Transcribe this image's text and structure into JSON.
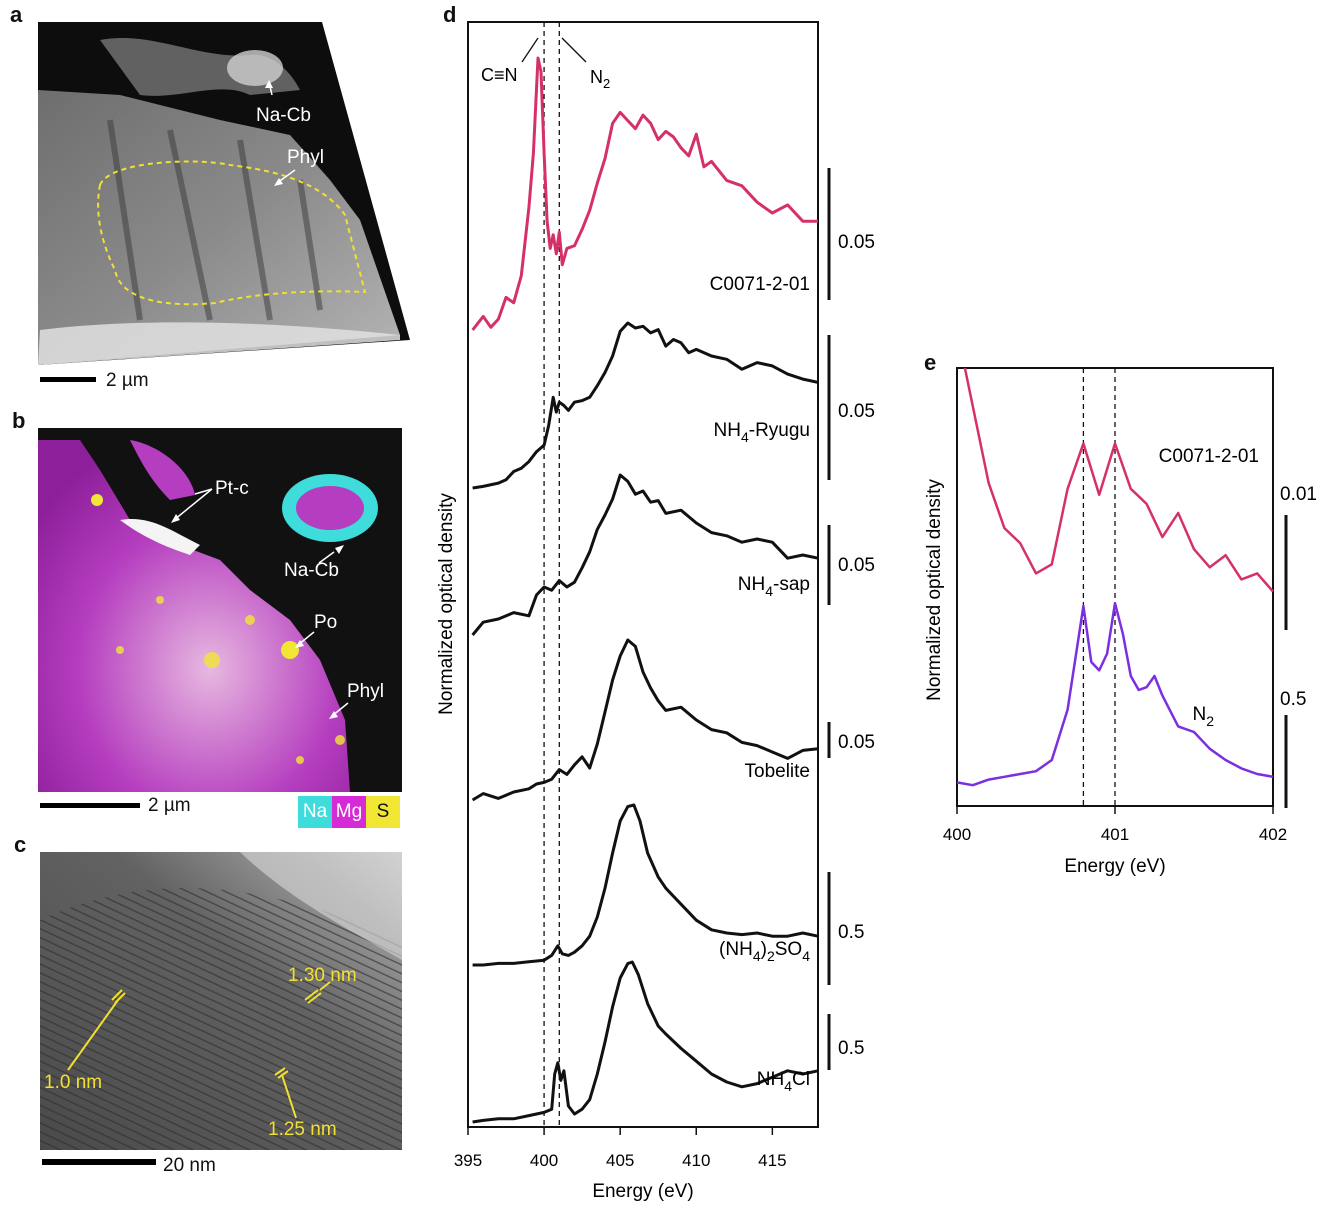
{
  "panels": {
    "a": {
      "label": "a",
      "ann": {
        "nacb": "Na-Cb",
        "phyl": "Phyl"
      },
      "scale": "2 µm"
    },
    "b": {
      "label": "b",
      "ann": {
        "ptc": "Pt-c",
        "nacb": "Na-Cb",
        "po": "Po",
        "phyl": "Phyl"
      },
      "scale": "2 µm",
      "legend": [
        {
          "label": "Na",
          "color": "#3fdcdc"
        },
        {
          "label": "Mg",
          "color": "#d62ad6"
        },
        {
          "label": "S",
          "color": "#f2e634"
        }
      ]
    },
    "c": {
      "label": "c",
      "ann": {
        "d130": "1.30 nm",
        "d10": "1.0 nm",
        "d125": "1.25 nm"
      },
      "scale": "20 nm"
    },
    "d": {
      "label": "d",
      "annot": {
        "cn": "C≡N",
        "n2": "N",
        "n2sub": "2"
      }
    },
    "e": {
      "label": "e"
    }
  },
  "colors": {
    "pink": "#d6306b",
    "purple": "#7b2fe0",
    "yellow": "#f0e030",
    "black": "#111111"
  },
  "chart_data": [
    {
      "type": "line",
      "panel": "d",
      "xlabel": "Energy (eV)",
      "ylabel": "Normalized optical density",
      "xlim": [
        395,
        418
      ],
      "xticks": [
        "395",
        "400",
        "405",
        "410",
        "415"
      ],
      "dashed_lines": [
        400.0,
        401.0
      ],
      "series": [
        {
          "name": "C0071-2-01",
          "label_main": "C0071-2-01",
          "label_sub": "",
          "label_tail": "",
          "color": "#d6306b",
          "scale": "0.05",
          "x": [
            395.3,
            396.0,
            396.5,
            397.0,
            397.5,
            398.0,
            398.5,
            399.0,
            399.3,
            399.6,
            399.8,
            400.0,
            400.2,
            400.4,
            400.6,
            400.8,
            401.0,
            401.2,
            401.5,
            402.0,
            402.5,
            403.0,
            403.5,
            404.0,
            404.5,
            405.0,
            405.5,
            406.0,
            406.5,
            407.0,
            407.5,
            408.0,
            408.5,
            409.0,
            409.5,
            410.0,
            410.5,
            411.0,
            412.0,
            413.0,
            414.0,
            415.0,
            416.0,
            417.0,
            418.0
          ],
          "y": [
            0.0,
            0.05,
            0.01,
            0.04,
            0.12,
            0.1,
            0.2,
            0.45,
            0.65,
            1.0,
            0.95,
            0.65,
            0.4,
            0.3,
            0.35,
            0.28,
            0.36,
            0.24,
            0.3,
            0.31,
            0.37,
            0.44,
            0.54,
            0.63,
            0.76,
            0.8,
            0.77,
            0.74,
            0.79,
            0.76,
            0.7,
            0.73,
            0.71,
            0.67,
            0.64,
            0.72,
            0.6,
            0.62,
            0.55,
            0.53,
            0.47,
            0.43,
            0.46,
            0.4,
            0.4
          ]
        },
        {
          "name": "NH4-Ryugu",
          "label_main": "NH",
          "label_sub": "4",
          "label_tail": "-Ryugu",
          "color": "#111111",
          "scale": "0.05",
          "x": [
            395.3,
            396.0,
            397.0,
            397.5,
            398.0,
            398.5,
            399.0,
            399.5,
            400.0,
            400.3,
            400.6,
            400.8,
            401.0,
            401.3,
            401.6,
            402.0,
            402.5,
            403.0,
            403.5,
            404.0,
            404.5,
            405.0,
            405.5,
            406.0,
            406.5,
            407.0,
            407.5,
            408.0,
            408.5,
            409.0,
            409.5,
            410.0,
            411.0,
            412.0,
            413.0,
            414.0,
            415.0,
            416.0,
            417.0,
            418.0
          ],
          "y": [
            0.0,
            0.01,
            0.03,
            0.05,
            0.1,
            0.12,
            0.16,
            0.22,
            0.26,
            0.38,
            0.55,
            0.46,
            0.52,
            0.5,
            0.47,
            0.52,
            0.53,
            0.55,
            0.62,
            0.7,
            0.8,
            0.95,
            1.0,
            0.97,
            0.98,
            0.94,
            0.96,
            0.86,
            0.9,
            0.88,
            0.82,
            0.84,
            0.8,
            0.78,
            0.72,
            0.76,
            0.74,
            0.69,
            0.66,
            0.64
          ]
        },
        {
          "name": "NH4-sap",
          "label_main": "NH",
          "label_sub": "4",
          "label_tail": "-sap",
          "color": "#111111",
          "scale": "0.05",
          "x": [
            395.3,
            396.0,
            397.0,
            398.0,
            399.0,
            399.5,
            400.0,
            400.5,
            401.0,
            401.5,
            402.0,
            402.5,
            403.0,
            403.5,
            404.0,
            404.5,
            405.0,
            405.5,
            406.0,
            406.5,
            407.0,
            407.5,
            408.0,
            409.0,
            410.0,
            411.0,
            412.0,
            413.0,
            414.0,
            415.0,
            416.0,
            417.0,
            418.0
          ],
          "y": [
            0.0,
            0.08,
            0.1,
            0.14,
            0.12,
            0.25,
            0.3,
            0.28,
            0.34,
            0.3,
            0.33,
            0.42,
            0.52,
            0.66,
            0.75,
            0.85,
            1.0,
            0.96,
            0.88,
            0.9,
            0.83,
            0.84,
            0.76,
            0.78,
            0.7,
            0.64,
            0.62,
            0.58,
            0.6,
            0.58,
            0.48,
            0.5,
            0.48
          ]
        },
        {
          "name": "Tobelite",
          "label_main": "Tobelite",
          "label_sub": "",
          "label_tail": "",
          "color": "#111111",
          "scale": "0.05",
          "x": [
            395.3,
            396.0,
            397.0,
            398.0,
            399.0,
            399.5,
            400.0,
            400.5,
            401.0,
            401.5,
            402.0,
            402.5,
            403.0,
            403.5,
            404.0,
            404.5,
            405.0,
            405.5,
            406.0,
            406.5,
            407.0,
            407.5,
            408.0,
            409.0,
            410.0,
            411.0,
            412.0,
            413.0,
            414.0,
            415.0,
            416.0,
            417.0,
            418.0
          ],
          "y": [
            0.0,
            0.04,
            0.01,
            0.05,
            0.07,
            0.1,
            0.11,
            0.13,
            0.19,
            0.16,
            0.22,
            0.27,
            0.2,
            0.35,
            0.55,
            0.75,
            0.9,
            1.0,
            0.96,
            0.8,
            0.7,
            0.62,
            0.56,
            0.58,
            0.5,
            0.44,
            0.42,
            0.36,
            0.34,
            0.3,
            0.26,
            0.31,
            0.32
          ]
        },
        {
          "name": "(NH4)2SO4",
          "label_main": "(NH",
          "label_sub": "4",
          "label_tail": ")",
          "label_sub2": "2",
          "label_tail2": "SO",
          "label_sub3": "4",
          "color": "#111111",
          "scale": "0.5",
          "x": [
            395.3,
            396.0,
            397.0,
            398.0,
            399.0,
            400.0,
            400.5,
            400.9,
            401.2,
            401.6,
            402.0,
            402.5,
            403.0,
            403.5,
            404.0,
            404.5,
            405.0,
            405.5,
            405.9,
            406.3,
            406.8,
            407.5,
            408.0,
            409.0,
            410.0,
            411.0,
            412.0,
            413.0,
            414.0,
            415.0,
            416.0,
            417.0,
            418.0
          ],
          "y": [
            0.0,
            0.0,
            0.01,
            0.01,
            0.02,
            0.03,
            0.06,
            0.12,
            0.07,
            0.06,
            0.08,
            0.12,
            0.18,
            0.3,
            0.48,
            0.7,
            0.9,
            0.99,
            1.0,
            0.9,
            0.7,
            0.55,
            0.48,
            0.38,
            0.28,
            0.22,
            0.2,
            0.19,
            0.2,
            0.18,
            0.18,
            0.2,
            0.18
          ]
        },
        {
          "name": "NH4Cl",
          "label_main": "NH",
          "label_sub": "4",
          "label_tail": "Cl",
          "color": "#111111",
          "scale": "0.5",
          "x": [
            395.3,
            396.0,
            397.0,
            398.0,
            399.0,
            400.0,
            400.5,
            400.7,
            400.9,
            401.1,
            401.3,
            401.6,
            402.0,
            402.5,
            403.0,
            403.5,
            404.0,
            404.5,
            405.0,
            405.5,
            405.8,
            406.2,
            406.8,
            407.5,
            408.0,
            409.0,
            410.0,
            411.0,
            412.0,
            413.0,
            414.0,
            415.0,
            416.0,
            417.0,
            418.0
          ],
          "y": [
            0.0,
            0.01,
            0.02,
            0.02,
            0.04,
            0.06,
            0.08,
            0.3,
            0.37,
            0.26,
            0.32,
            0.1,
            0.05,
            0.08,
            0.14,
            0.3,
            0.5,
            0.72,
            0.9,
            0.99,
            1.0,
            0.92,
            0.74,
            0.6,
            0.55,
            0.46,
            0.38,
            0.3,
            0.25,
            0.22,
            0.24,
            0.28,
            0.32,
            0.3,
            0.32
          ]
        }
      ]
    },
    {
      "type": "line",
      "panel": "e",
      "xlabel": "Energy (eV)",
      "ylabel": "Normalized optical density",
      "xlim": [
        400,
        402
      ],
      "xticks": [
        "400",
        "401",
        "402"
      ],
      "dashed_lines": [
        400.8,
        401.0
      ],
      "series": [
        {
          "name": "C0071-2-01",
          "label_main": "C0071-2-01",
          "label_sub": "",
          "color": "#d6306b",
          "scale": "0.01",
          "x": [
            400.05,
            400.2,
            400.3,
            400.4,
            400.5,
            400.6,
            400.7,
            400.8,
            400.9,
            401.0,
            401.1,
            401.2,
            401.3,
            401.4,
            401.5,
            401.6,
            401.7,
            401.8,
            401.9,
            402.0
          ],
          "y": [
            1.0,
            0.62,
            0.47,
            0.42,
            0.32,
            0.35,
            0.6,
            0.75,
            0.58,
            0.75,
            0.6,
            0.55,
            0.44,
            0.52,
            0.4,
            0.34,
            0.38,
            0.3,
            0.32,
            0.26
          ]
        },
        {
          "name": "N2",
          "label_main": "N",
          "label_sub": "2",
          "color": "#7b2fe0",
          "scale": "0.5",
          "x": [
            400.0,
            400.1,
            400.2,
            400.3,
            400.4,
            400.5,
            400.6,
            400.7,
            400.8,
            400.85,
            400.9,
            400.95,
            401.0,
            401.05,
            401.1,
            401.15,
            401.2,
            401.25,
            401.3,
            401.4,
            401.5,
            401.6,
            401.7,
            401.8,
            401.9,
            402.0
          ],
          "y": [
            0.02,
            0.01,
            0.03,
            0.04,
            0.05,
            0.06,
            0.1,
            0.28,
            0.65,
            0.45,
            0.42,
            0.48,
            0.66,
            0.55,
            0.4,
            0.35,
            0.36,
            0.4,
            0.33,
            0.22,
            0.2,
            0.14,
            0.1,
            0.07,
            0.05,
            0.04
          ]
        }
      ]
    }
  ]
}
